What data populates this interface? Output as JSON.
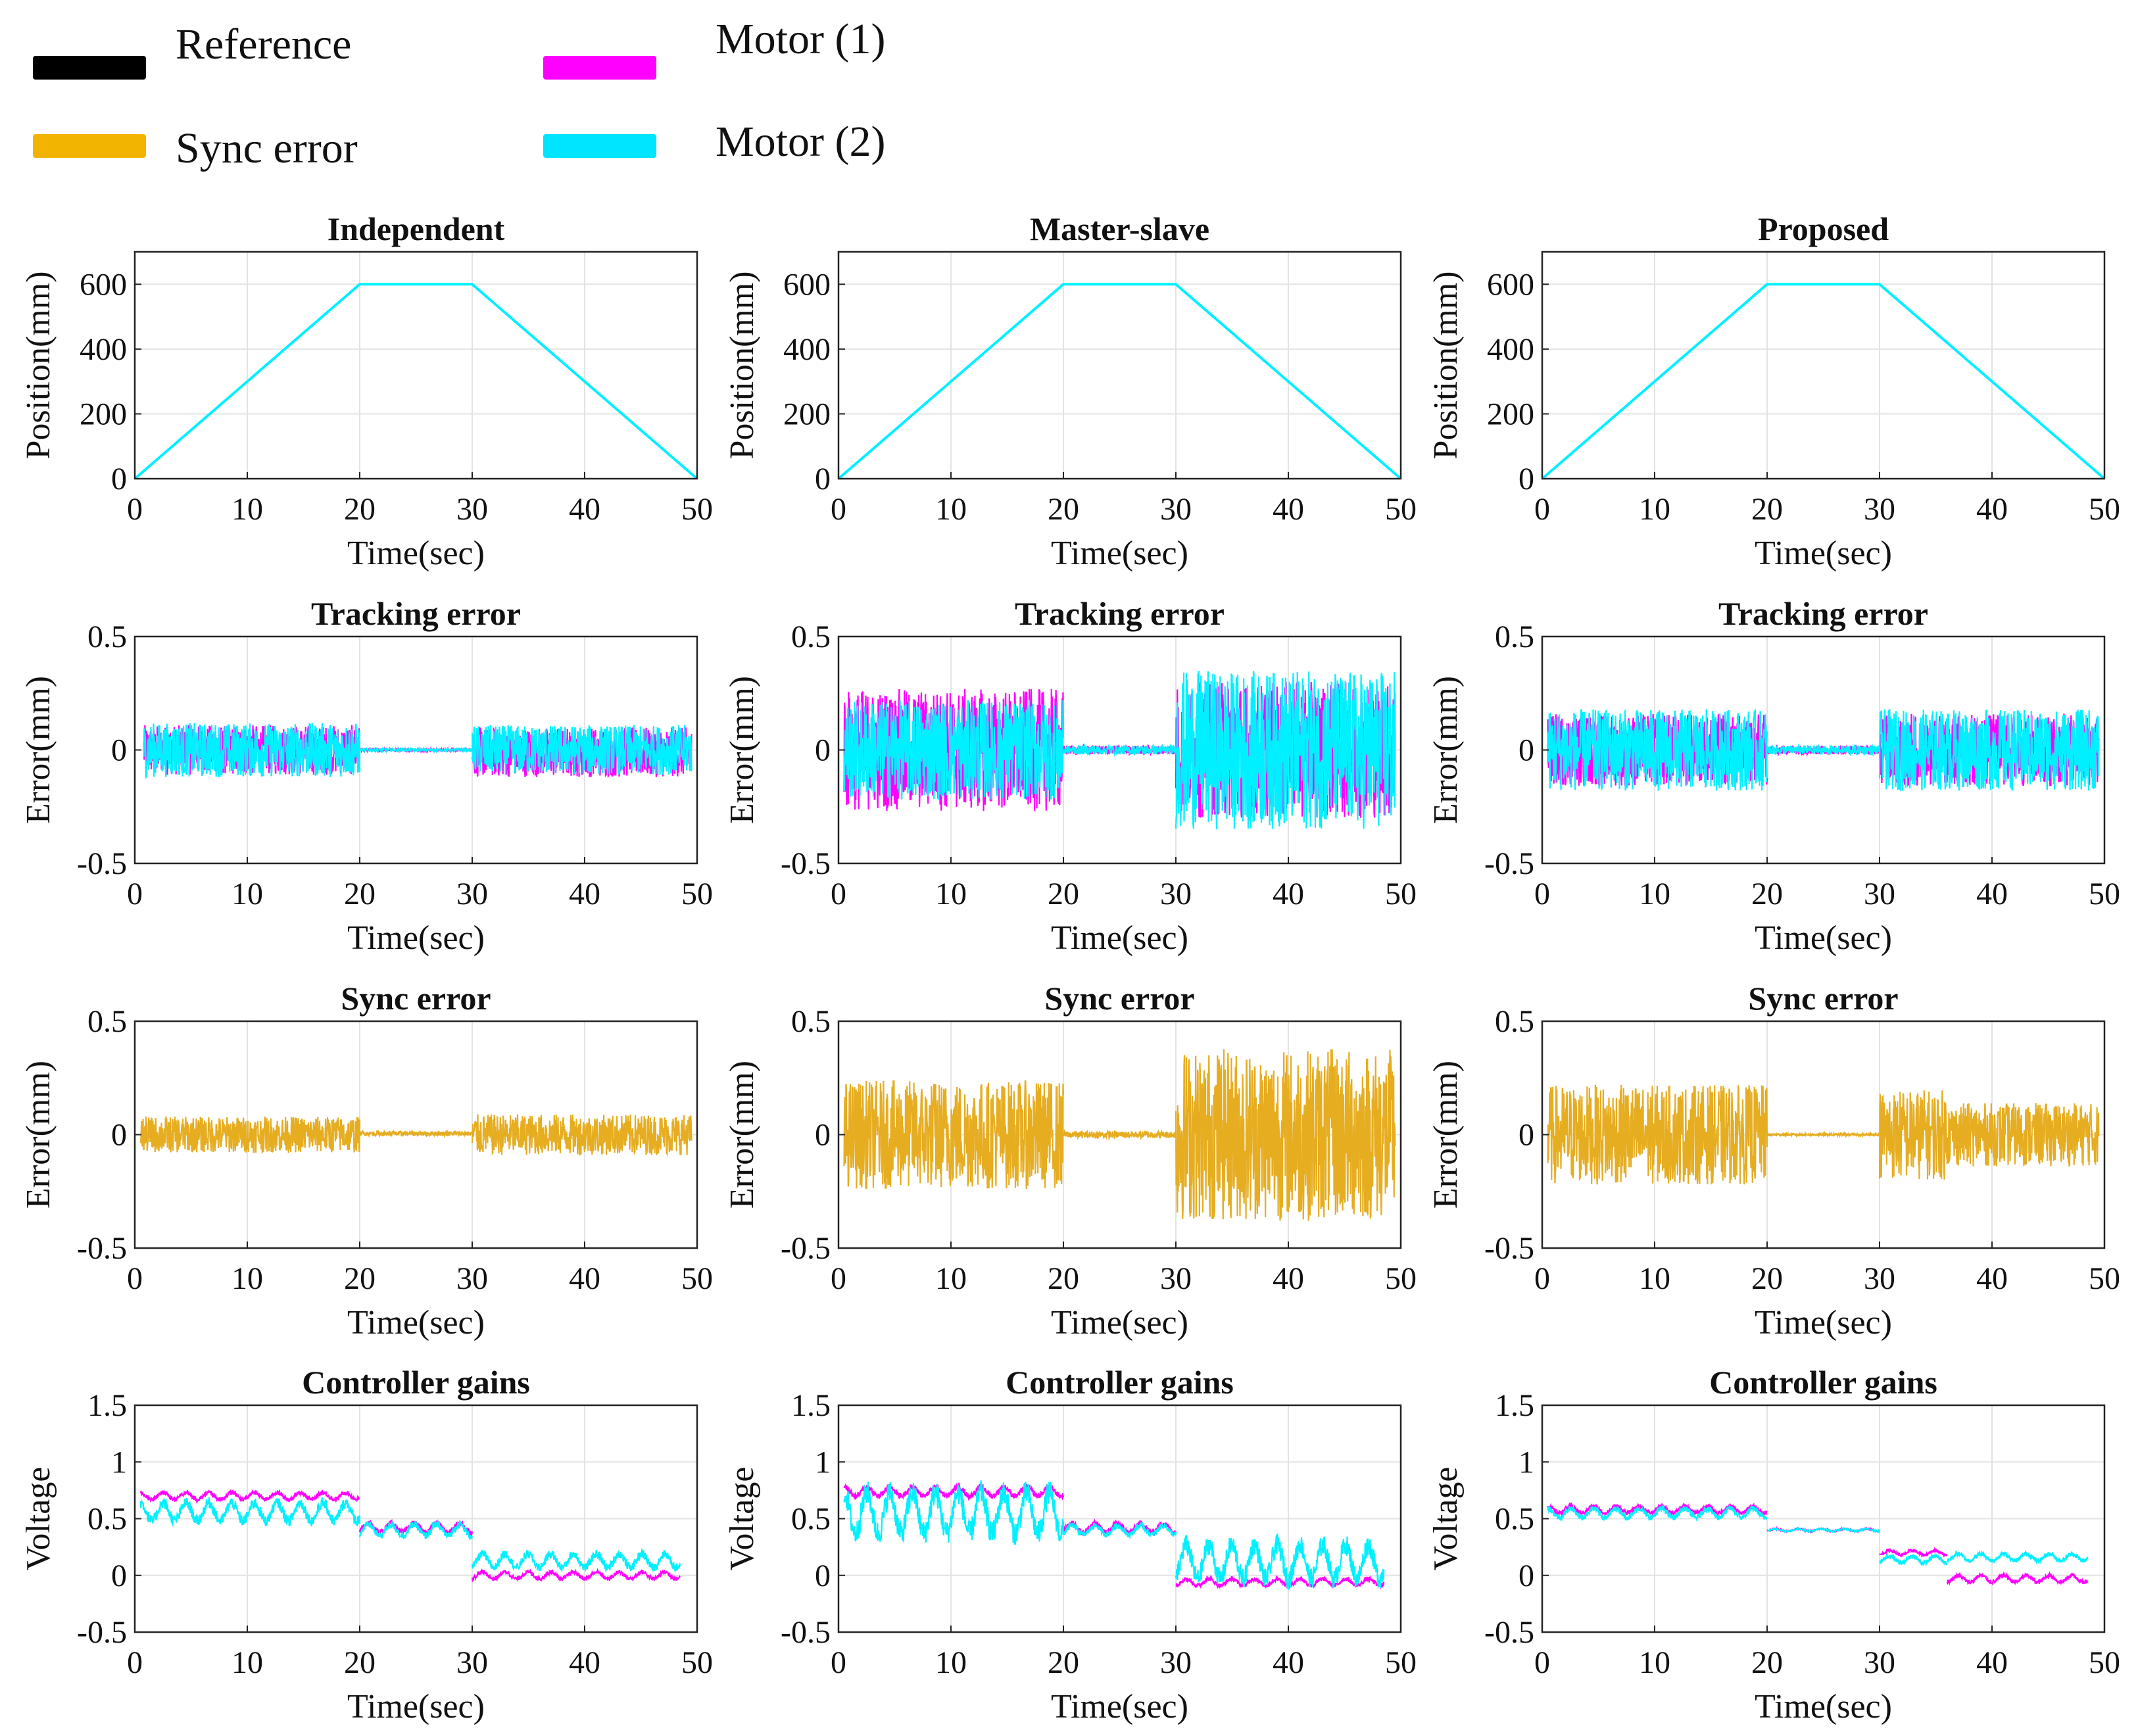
{
  "legend": {
    "items": [
      {
        "label": "Reference",
        "color": "#000000"
      },
      {
        "label": "Motor (1)",
        "color": "#ff00ff"
      },
      {
        "label": "Sync error",
        "color": "#f2b400"
      },
      {
        "label": "Motor (2)",
        "color": "#00e5ff"
      }
    ]
  },
  "colors": {
    "reference": "#000000",
    "motor1": "#ff00ff",
    "motor2": "#00f0ff",
    "sync": "#e6ad21",
    "grid": "#e3e3e3",
    "axis": "#222222"
  },
  "columns": [
    "Independent",
    "Master-slave",
    "Proposed"
  ],
  "rows": [
    {
      "id": "position",
      "title": "",
      "ylabel": "Position(mm)",
      "xlabel": "Time(sec)",
      "ylim": [
        0,
        700
      ],
      "yticks": [
        0,
        200,
        400,
        600
      ],
      "ytick_labels": [
        "0",
        "200",
        "400",
        "600"
      ]
    },
    {
      "id": "tracking",
      "title": "Tracking error",
      "ylabel": "Error(mm)",
      "xlabel": "Time(sec)",
      "ylim": [
        -0.5,
        0.5
      ],
      "yticks": [
        -0.5,
        0,
        0.5
      ],
      "ytick_labels": [
        "-0.5",
        "0",
        "0.5"
      ]
    },
    {
      "id": "sync",
      "title": "Sync error",
      "ylabel": "Error(mm)",
      "xlabel": "Time(sec)",
      "ylim": [
        -0.5,
        0.5
      ],
      "yticks": [
        -0.5,
        0,
        0.5
      ],
      "ytick_labels": [
        "-0.5",
        "0",
        "0.5"
      ]
    },
    {
      "id": "gains",
      "title": "Controller gains",
      "ylabel": "Voltage",
      "xlabel": "Time(sec)",
      "ylim": [
        -0.5,
        1.5
      ],
      "yticks": [
        -0.5,
        0,
        0.5,
        1,
        1.5
      ],
      "ytick_labels": [
        "-0.5",
        "0",
        "0.5",
        "1",
        "1.5"
      ]
    }
  ],
  "xaxis": {
    "xlim": [
      0,
      50
    ],
    "xticks": [
      0,
      10,
      20,
      30,
      40,
      50
    ],
    "xtick_labels": [
      "0",
      "10",
      "20",
      "30",
      "40",
      "50"
    ]
  },
  "chart_data": [
    {
      "type": "line",
      "col": 0,
      "row": "position",
      "title": "Independent",
      "xlabel": "Time(sec)",
      "ylabel": "Position(mm)",
      "xlim": [
        0,
        50
      ],
      "ylim": [
        0,
        700
      ],
      "series": [
        {
          "name": "Reference",
          "x": [
            0,
            20,
            30,
            50
          ],
          "y": [
            0,
            600,
            600,
            0
          ]
        },
        {
          "name": "Motor (1)",
          "x": [
            0,
            20,
            30,
            50
          ],
          "y": [
            0,
            600,
            600,
            0
          ]
        },
        {
          "name": "Motor (2)",
          "x": [
            0,
            20,
            30,
            50
          ],
          "y": [
            0,
            600,
            600,
            0
          ]
        }
      ]
    },
    {
      "type": "line",
      "col": 1,
      "row": "position",
      "title": "Master-slave",
      "xlabel": "Time(sec)",
      "ylabel": "Position(mm)",
      "xlim": [
        0,
        50
      ],
      "ylim": [
        0,
        700
      ],
      "series": [
        {
          "name": "Reference",
          "x": [
            0,
            20,
            30,
            50
          ],
          "y": [
            0,
            600,
            600,
            0
          ]
        },
        {
          "name": "Motor (1)",
          "x": [
            0,
            20,
            30,
            50
          ],
          "y": [
            0,
            600,
            600,
            0
          ]
        },
        {
          "name": "Motor (2)",
          "x": [
            0,
            20,
            30,
            50
          ],
          "y": [
            0,
            600,
            600,
            0
          ]
        }
      ]
    },
    {
      "type": "line",
      "col": 2,
      "row": "position",
      "title": "Proposed",
      "xlabel": "Time(sec)",
      "ylabel": "Position(mm)",
      "xlim": [
        0,
        50
      ],
      "ylim": [
        0,
        700
      ],
      "series": [
        {
          "name": "Reference",
          "x": [
            0,
            20,
            30,
            50
          ],
          "y": [
            0,
            600,
            600,
            0
          ]
        },
        {
          "name": "Motor (1)",
          "x": [
            0,
            20,
            30,
            50
          ],
          "y": [
            0,
            600,
            600,
            0
          ]
        },
        {
          "name": "Motor (2)",
          "x": [
            0,
            20,
            30,
            50
          ],
          "y": [
            0,
            600,
            600,
            0
          ]
        }
      ]
    },
    {
      "type": "line",
      "col": 0,
      "row": "tracking",
      "title": "Tracking error",
      "xlabel": "Time(sec)",
      "ylabel": "Error(mm)",
      "xlim": [
        0,
        50
      ],
      "ylim": [
        -0.5,
        0.5
      ],
      "series": [
        {
          "name": "Motor (1)",
          "segments": [
            [
              0.8,
              20,
              0,
              0.11
            ],
            [
              20,
              30,
              0.0,
              0.005
            ],
            [
              30,
              49.5,
              -0.01,
              0.11
            ]
          ]
        },
        {
          "name": "Motor (2)",
          "segments": [
            [
              0.8,
              20,
              0,
              0.12
            ],
            [
              20,
              30,
              0.0,
              0.005
            ],
            [
              30,
              49.5,
              0.0,
              0.11
            ]
          ]
        }
      ]
    },
    {
      "type": "line",
      "col": 1,
      "row": "tracking",
      "title": "Tracking error",
      "xlabel": "Time(sec)",
      "ylabel": "Error(mm)",
      "xlim": [
        0,
        50
      ],
      "ylim": [
        -0.5,
        0.5
      ],
      "series": [
        {
          "name": "Motor (1)",
          "segments": [
            [
              0.5,
              20,
              0,
              0.27
            ],
            [
              20,
              30,
              0.0,
              0.02
            ],
            [
              30,
              49.5,
              0,
              0.3
            ]
          ]
        },
        {
          "name": "Motor (2)",
          "segments": [
            [
              0.5,
              20,
              0,
              0.22
            ],
            [
              20,
              30,
              0.0,
              0.02
            ],
            [
              30,
              49.5,
              0,
              0.35
            ]
          ]
        }
      ]
    },
    {
      "type": "line",
      "col": 2,
      "row": "tracking",
      "title": "Tracking error",
      "xlabel": "Time(sec)",
      "ylabel": "Error(mm)",
      "xlim": [
        0,
        50
      ],
      "ylim": [
        -0.5,
        0.5
      ],
      "series": [
        {
          "name": "Motor (1)",
          "segments": [
            [
              0.5,
              20,
              0,
              0.16
            ],
            [
              20,
              30,
              0.0,
              0.02
            ],
            [
              30,
              49.5,
              0,
              0.16
            ]
          ]
        },
        {
          "name": "Motor (2)",
          "segments": [
            [
              0.5,
              20,
              0,
              0.18
            ],
            [
              20,
              30,
              0.0,
              0.02
            ],
            [
              30,
              49.5,
              0,
              0.18
            ]
          ]
        }
      ]
    },
    {
      "type": "line",
      "col": 0,
      "row": "sync",
      "title": "Sync error",
      "xlabel": "Time(sec)",
      "ylabel": "Error(mm)",
      "xlim": [
        0,
        50
      ],
      "ylim": [
        -0.5,
        0.5
      ],
      "series": [
        {
          "name": "Sync error",
          "segments": [
            [
              0.5,
              20,
              0,
              0.08
            ],
            [
              20,
              30,
              0.005,
              0.01
            ],
            [
              30,
              49.5,
              0,
              0.09
            ]
          ]
        }
      ]
    },
    {
      "type": "line",
      "col": 1,
      "row": "sync",
      "title": "Sync error",
      "xlabel": "Time(sec)",
      "ylabel": "Error(mm)",
      "xlim": [
        0,
        50
      ],
      "ylim": [
        -0.5,
        0.5
      ],
      "series": [
        {
          "name": "Sync error",
          "segments": [
            [
              0.5,
              20,
              0,
              0.24
            ],
            [
              20,
              30,
              0.0,
              0.015
            ],
            [
              30,
              49.5,
              0,
              0.38
            ]
          ]
        }
      ]
    },
    {
      "type": "line",
      "col": 2,
      "row": "sync",
      "title": "Sync error",
      "xlabel": "Time(sec)",
      "ylabel": "Error(mm)",
      "xlim": [
        0,
        50
      ],
      "ylim": [
        -0.5,
        0.5
      ],
      "series": [
        {
          "name": "Sync error",
          "segments": [
            [
              0.5,
              20,
              0,
              0.22
            ],
            [
              20,
              30,
              0.0,
              0.005
            ],
            [
              30,
              36,
              0,
              0.2
            ],
            [
              36,
              49.5,
              0,
              0.14
            ]
          ]
        }
      ]
    },
    {
      "type": "line",
      "col": 0,
      "row": "gains",
      "title": "Controller gains",
      "xlabel": "Time(sec)",
      "ylabel": "Voltage",
      "xlim": [
        0,
        50
      ],
      "ylim": [
        -0.5,
        1.5
      ],
      "series": [
        {
          "name": "Motor (1)",
          "segments": [
            [
              0.5,
              20,
              0.7,
              0.03
            ],
            [
              20,
              30,
              0.42,
              0.04
            ],
            [
              30,
              48.5,
              0.0,
              0.03
            ]
          ]
        },
        {
          "name": "Motor (2)",
          "segments": [
            [
              0.5,
              20,
              0.56,
              0.08
            ],
            [
              20,
              30,
              0.4,
              0.05
            ],
            [
              30,
              48.5,
              0.13,
              0.06
            ]
          ]
        }
      ]
    },
    {
      "type": "line",
      "col": 1,
      "row": "gains",
      "title": "Controller gains",
      "xlabel": "Time(sec)",
      "ylabel": "Voltage",
      "xlim": [
        0,
        50
      ],
      "ylim": [
        -0.5,
        1.5
      ],
      "series": [
        {
          "name": "Motor (1)",
          "segments": [
            [
              0.5,
              20,
              0.74,
              0.04
            ],
            [
              20,
              30,
              0.42,
              0.04
            ],
            [
              30,
              48.5,
              -0.06,
              0.03
            ]
          ]
        },
        {
          "name": "Motor (2)",
          "segments": [
            [
              0.5,
              20,
              0.55,
              0.18
            ],
            [
              20,
              30,
              0.4,
              0.04
            ],
            [
              30,
              48.5,
              0.12,
              0.15
            ]
          ]
        }
      ]
    },
    {
      "type": "line",
      "col": 2,
      "row": "gains",
      "title": "Controller gains",
      "xlabel": "Time(sec)",
      "ylabel": "Voltage",
      "xlim": [
        0,
        50
      ],
      "ylim": [
        -0.5,
        1.5
      ],
      "series": [
        {
          "name": "Motor (1)",
          "segments": [
            [
              0.5,
              20,
              0.58,
              0.03
            ],
            [
              20,
              30,
              0.4,
              0.01
            ],
            [
              30,
              36,
              0.2,
              0.02
            ],
            [
              36,
              48.5,
              -0.03,
              0.03
            ]
          ]
        },
        {
          "name": "Motor (2)",
          "segments": [
            [
              0.5,
              20,
              0.55,
              0.04
            ],
            [
              20,
              30,
              0.4,
              0.01
            ],
            [
              30,
              36,
              0.14,
              0.03
            ],
            [
              36,
              48.5,
              0.16,
              0.03
            ]
          ]
        }
      ]
    }
  ]
}
